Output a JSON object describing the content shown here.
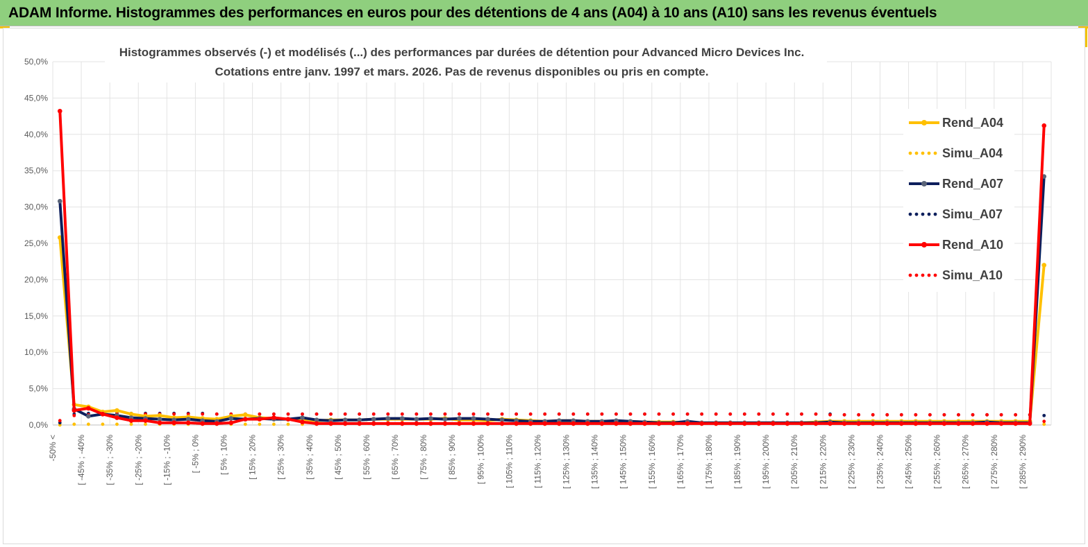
{
  "header": {
    "title": "ADAM Informe. Histogrammes des performances en euros pour des détentions de 4 ans (A04) à 10 ans (A10) sans les revenus éventuels"
  },
  "chart_data": {
    "type": "line",
    "title_lines": [
      "Histogrammes observés (-) et modélisés (...) des performances par durées de détention pour Advanced Micro Devices Inc.",
      "Cotations entre janv. 1997 et mars. 2026.  Pas de revenus disponibles ou pris en compte."
    ],
    "ylim": [
      0,
      50
    ],
    "y_ticks": [
      "0,0%",
      "5,0%",
      "10,0%",
      "15,0%",
      "20,0%",
      "25,0%",
      "30,0%",
      "35,0%",
      "40,0%",
      "45,0%",
      "50,0%"
    ],
    "x_tick_labels": [
      "-50% <",
      "[ -45% ; -40%",
      "[ -35% ; -30%",
      "[ -25% ; -20%",
      "[ -15% ; -10%",
      "[ -5% ; 0%",
      "[ 5% ; 10%",
      "[ 15% ; 20%",
      "[ 25% ; 30%",
      "[ 35% ; 40%",
      "[ 45% ; 50%",
      "[ 55% ; 60%",
      "[ 65% ; 70%",
      "[ 75% ; 80%",
      "[ 85% ; 90%",
      "[ 95% ; 100%",
      "[ 105% ; 110%",
      "[ 115% ; 120%",
      "[ 125% ; 130%",
      "[ 135% ; 140%",
      "[ 145% ; 150%",
      "[ 155% ; 160%",
      "[ 165% ; 170%",
      "[ 175% ; 180%",
      "[ 185% ; 190%",
      "[ 195% ; 200%",
      "[ 205% ; 210%",
      "[ 215% ; 220%",
      "[ 225% ; 230%",
      "[ 235% ; 240%",
      "[ 245% ; 250%",
      "[ 255% ; 260%",
      "[ 265% ; 270%",
      "[ 275% ; 280%",
      "[ 285% ; 290%"
    ],
    "bucket_count": 70,
    "grid": true,
    "legend_position": "right",
    "series": [
      {
        "name": "Rend_A04",
        "style": "solid",
        "color": "#ffc000",
        "values": [
          25.8,
          2.8,
          2.5,
          1.8,
          2.0,
          1.5,
          1.2,
          1.3,
          1.0,
          1.1,
          0.9,
          0.8,
          1.2,
          1.4,
          1.0,
          0.9,
          0.8,
          0.8,
          0.6,
          0.7,
          0.7,
          0.7,
          0.8,
          0.8,
          0.8,
          0.8,
          0.8,
          0.9,
          0.7,
          0.7,
          0.6,
          0.8,
          0.7,
          0.6,
          0.5,
          0.6,
          0.6,
          0.5,
          0.5,
          0.5,
          0.5,
          0.4,
          0.4,
          0.4,
          0.3,
          0.3,
          0.3,
          0.3,
          0.3,
          0.3,
          0.3,
          0.3,
          0.3,
          0.4,
          0.5,
          0.5,
          0.5,
          0.5,
          0.5,
          0.5,
          0.5,
          0.5,
          0.5,
          0.5,
          0.5,
          0.5,
          0.5,
          0.5,
          0.5,
          22.0
        ]
      },
      {
        "name": "Simu_A04",
        "style": "dotted",
        "color": "#ffc000",
        "values": [
          0.0,
          0.1,
          0.1,
          0.1,
          0.1,
          0.1,
          0.1,
          0.1,
          0.1,
          0.1,
          0.1,
          0.1,
          0.1,
          0.1,
          0.1,
          0.1,
          0.1,
          0.1,
          0.1,
          0.1,
          0.1,
          0.1,
          0.1,
          0.1,
          0.1,
          0.1,
          0.1,
          0.1,
          0.1,
          0.1,
          0.1,
          0.1,
          0.1,
          0.1,
          0.1,
          0.1,
          0.1,
          0.1,
          0.1,
          0.1,
          0.1,
          0.1,
          0.1,
          0.1,
          0.1,
          0.1,
          0.1,
          0.1,
          0.1,
          0.1,
          0.1,
          0.1,
          0.1,
          0.1,
          0.1,
          0.1,
          0.1,
          0.1,
          0.1,
          0.1,
          0.1,
          0.1,
          0.1,
          0.1,
          0.1,
          0.1,
          0.1,
          0.1,
          0.1,
          0.1
        ]
      },
      {
        "name": "Rend_A07",
        "style": "solid",
        "color": "#0d1f5c",
        "values": [
          30.8,
          2.2,
          1.2,
          1.5,
          1.3,
          1.0,
          0.9,
          0.8,
          0.7,
          0.8,
          0.6,
          0.5,
          0.9,
          0.8,
          0.9,
          0.8,
          0.8,
          1.0,
          0.7,
          0.6,
          0.7,
          0.7,
          0.8,
          0.9,
          0.9,
          0.8,
          0.9,
          0.8,
          0.9,
          0.9,
          0.8,
          0.7,
          0.6,
          0.5,
          0.5,
          0.6,
          0.6,
          0.5,
          0.5,
          0.6,
          0.5,
          0.4,
          0.3,
          0.3,
          0.5,
          0.3,
          0.3,
          0.3,
          0.3,
          0.3,
          0.3,
          0.3,
          0.3,
          0.3,
          0.4,
          0.3,
          0.3,
          0.3,
          0.3,
          0.3,
          0.3,
          0.3,
          0.3,
          0.3,
          0.3,
          0.4,
          0.3,
          0.3,
          0.3,
          34.2
        ]
      },
      {
        "name": "Simu_A07",
        "style": "dotted",
        "color": "#0d1f5c",
        "values": [
          0.3,
          1.5,
          1.6,
          1.6,
          1.6,
          1.6,
          1.6,
          1.6,
          1.6,
          1.6,
          1.6,
          1.5,
          1.5,
          1.5,
          1.5,
          1.5,
          1.5,
          1.5,
          1.5,
          1.5,
          1.5,
          1.5,
          1.5,
          1.5,
          1.5,
          1.5,
          1.5,
          1.5,
          1.5,
          1.5,
          1.5,
          1.5,
          1.5,
          1.5,
          1.5,
          1.5,
          1.5,
          1.5,
          1.5,
          1.5,
          1.5,
          1.5,
          1.5,
          1.5,
          1.5,
          1.5,
          1.5,
          1.5,
          1.5,
          1.5,
          1.5,
          1.5,
          1.5,
          1.5,
          1.5,
          1.4,
          1.4,
          1.4,
          1.4,
          1.4,
          1.4,
          1.4,
          1.4,
          1.4,
          1.4,
          1.4,
          1.4,
          1.4,
          1.4,
          1.3
        ]
      },
      {
        "name": "Rend_A10",
        "style": "solid",
        "color": "#ff0000",
        "values": [
          43.2,
          2.0,
          2.3,
          1.5,
          1.0,
          0.6,
          0.6,
          0.3,
          0.3,
          0.3,
          0.2,
          0.2,
          0.3,
          0.8,
          0.8,
          1.0,
          0.8,
          0.4,
          0.2,
          0.2,
          0.2,
          0.2,
          0.2,
          0.2,
          0.2,
          0.2,
          0.2,
          0.2,
          0.2,
          0.2,
          0.2,
          0.2,
          0.2,
          0.2,
          0.2,
          0.2,
          0.2,
          0.2,
          0.2,
          0.2,
          0.2,
          0.2,
          0.2,
          0.2,
          0.2,
          0.2,
          0.2,
          0.2,
          0.2,
          0.2,
          0.2,
          0.2,
          0.2,
          0.2,
          0.2,
          0.2,
          0.2,
          0.2,
          0.2,
          0.2,
          0.2,
          0.2,
          0.2,
          0.2,
          0.2,
          0.2,
          0.2,
          0.2,
          0.2,
          41.2
        ]
      },
      {
        "name": "Simu_A10",
        "style": "dotted",
        "color": "#ff0000",
        "values": [
          0.6,
          1.3,
          1.4,
          1.4,
          1.5,
          1.5,
          1.5,
          1.5,
          1.5,
          1.5,
          1.5,
          1.5,
          1.5,
          1.5,
          1.5,
          1.5,
          1.5,
          1.5,
          1.5,
          1.5,
          1.5,
          1.5,
          1.5,
          1.5,
          1.5,
          1.5,
          1.5,
          1.5,
          1.5,
          1.5,
          1.5,
          1.5,
          1.5,
          1.5,
          1.5,
          1.5,
          1.5,
          1.5,
          1.5,
          1.5,
          1.5,
          1.5,
          1.5,
          1.5,
          1.5,
          1.5,
          1.5,
          1.5,
          1.5,
          1.5,
          1.5,
          1.5,
          1.5,
          1.5,
          1.4,
          1.4,
          1.4,
          1.4,
          1.4,
          1.4,
          1.4,
          1.4,
          1.4,
          1.4,
          1.4,
          1.4,
          1.4,
          1.4,
          1.4,
          0.5
        ]
      }
    ]
  }
}
